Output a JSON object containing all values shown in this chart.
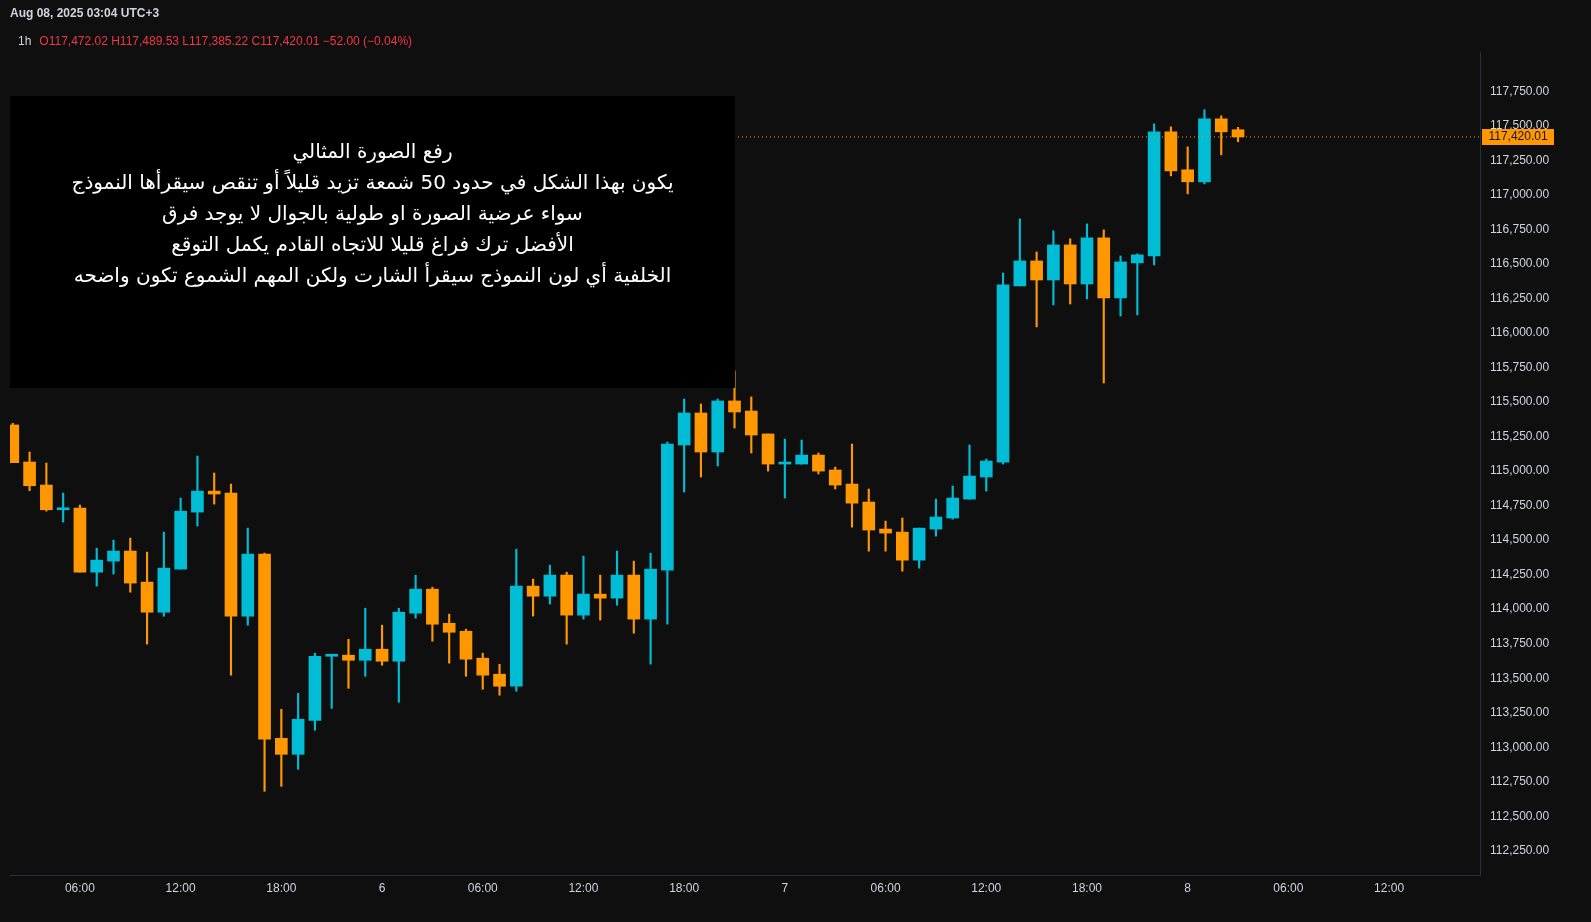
{
  "chart_data": {
    "type": "candlestick",
    "title": "1h",
    "subtitle": "O117,472.02 H117,489.53 L117,385.22 C117,420.01 −52.00 (−0.04%)",
    "annotations": [
      "Aug 08, 2025 03:04 UTC+3",
      "رفع الصورة المثالي\nيكون بهذا الشكل في حدود 50 شمعة تزيد قليلاً أو تنقص سيقرأها النموذج\nسواء عرضية الصورة او طولية بالجوال لا يوجد فرق\nالأفضل ترك فراغ قليلا للاتجاه القادم يكمل التوقع\nالخلفية أي لون النموذج سيقرأ الشارت ولكن المهم الشموع تكون واضحه"
    ],
    "x": [
      "2025-08-05T02:00",
      "2025-08-05T03:00",
      "2025-08-05T04:00",
      "2025-08-05T05:00",
      "2025-08-05T06:00",
      "2025-08-05T07:00",
      "2025-08-05T08:00",
      "2025-08-05T09:00",
      "2025-08-05T10:00",
      "2025-08-05T11:00",
      "2025-08-05T12:00",
      "2025-08-05T13:00",
      "2025-08-05T14:00",
      "2025-08-05T15:00",
      "2025-08-05T16:00",
      "2025-08-05T17:00",
      "2025-08-05T18:00",
      "2025-08-05T19:00",
      "2025-08-05T20:00",
      "2025-08-05T21:00",
      "2025-08-05T22:00",
      "2025-08-05T23:00",
      "2025-08-06T00:00",
      "2025-08-06T01:00",
      "2025-08-06T02:00",
      "2025-08-06T03:00",
      "2025-08-06T04:00",
      "2025-08-06T05:00",
      "2025-08-06T06:00",
      "2025-08-06T07:00",
      "2025-08-06T08:00",
      "2025-08-06T09:00",
      "2025-08-06T10:00",
      "2025-08-06T11:00",
      "2025-08-06T12:00",
      "2025-08-06T13:00",
      "2025-08-06T14:00",
      "2025-08-06T15:00",
      "2025-08-06T16:00",
      "2025-08-06T17:00",
      "2025-08-06T18:00",
      "2025-08-06T19:00",
      "2025-08-06T20:00",
      "2025-08-06T21:00",
      "2025-08-06T22:00",
      "2025-08-06T23:00",
      "2025-08-07T00:00",
      "2025-08-07T01:00",
      "2025-08-07T02:00",
      "2025-08-07T03:00",
      "2025-08-07T04:00",
      "2025-08-07T05:00",
      "2025-08-07T06:00",
      "2025-08-07T07:00",
      "2025-08-07T08:00",
      "2025-08-07T09:00",
      "2025-08-07T10:00",
      "2025-08-07T11:00",
      "2025-08-07T12:00",
      "2025-08-07T13:00",
      "2025-08-07T14:00",
      "2025-08-07T15:00",
      "2025-08-07T16:00",
      "2025-08-07T17:00",
      "2025-08-07T18:00",
      "2025-08-07T19:00",
      "2025-08-07T20:00",
      "2025-08-07T21:00",
      "2025-08-07T22:00",
      "2025-08-07T23:00",
      "2025-08-08T00:00",
      "2025-08-08T01:00",
      "2025-08-08T02:00",
      "2025-08-08T03:00"
    ],
    "ohlc": [
      [
        115334,
        115346,
        115061,
        115061
      ],
      [
        115066,
        115138,
        114858,
        114894
      ],
      [
        114899,
        115058,
        114710,
        114720
      ],
      [
        114720,
        114841,
        114631,
        114732
      ],
      [
        114732,
        114754,
        114268,
        114268
      ],
      [
        114268,
        114442,
        114167,
        114355
      ],
      [
        114348,
        114500,
        114254,
        114421
      ],
      [
        114421,
        114515,
        114123,
        114189
      ],
      [
        114196,
        114413,
        113747,
        113978
      ],
      [
        113978,
        114558,
        113949,
        114297
      ],
      [
        114290,
        114805,
        114290,
        114710
      ],
      [
        114703,
        115109,
        114602,
        114855
      ],
      [
        114855,
        114986,
        114761,
        114834
      ],
      [
        114841,
        114906,
        113522,
        113949
      ],
      [
        113949,
        114587,
        113884,
        114399
      ],
      [
        114399,
        114406,
        112681,
        113058
      ],
      [
        113065,
        113275,
        112717,
        112949
      ],
      [
        112949,
        113391,
        112840,
        113203
      ],
      [
        113195,
        113681,
        113123,
        113659
      ],
      [
        113659,
        113674,
        113282,
        113669
      ],
      [
        113667,
        113782,
        113427,
        113630
      ],
      [
        113630,
        114007,
        113514,
        113710
      ],
      [
        113710,
        113884,
        113594,
        113623
      ],
      [
        113623,
        114007,
        113326,
        113978
      ],
      [
        113971,
        114246,
        113935,
        114145
      ],
      [
        114145,
        114159,
        113768,
        113891
      ],
      [
        113898,
        113964,
        113609,
        113833
      ],
      [
        113840,
        113855,
        113514,
        113638
      ],
      [
        113645,
        113681,
        113420,
        113522
      ],
      [
        113529,
        113601,
        113377,
        113442
      ],
      [
        113442,
        114435,
        113406,
        114167
      ],
      [
        114167,
        114218,
        113950,
        114094
      ],
      [
        114094,
        114319,
        114037,
        114247
      ],
      [
        114247,
        114268,
        113747,
        113957
      ],
      [
        113957,
        114384,
        113928,
        114109
      ],
      [
        114109,
        114247,
        113921,
        114080
      ],
      [
        114080,
        114421,
        114029,
        114247
      ],
      [
        114247,
        114348,
        113826,
        113928
      ],
      [
        113928,
        114406,
        113602,
        114290
      ],
      [
        114283,
        115211,
        113892,
        115196
      ],
      [
        115189,
        115522,
        114848,
        115421
      ],
      [
        115421,
        115486,
        114957,
        115138
      ],
      [
        115138,
        115522,
        115037,
        115508
      ],
      [
        115508,
        115725,
        115312,
        115428
      ],
      [
        115435,
        115537,
        115131,
        115261
      ],
      [
        115269,
        115269,
        115000,
        115051
      ],
      [
        115051,
        115232,
        114805,
        115058
      ],
      [
        115051,
        115225,
        115051,
        115116
      ],
      [
        115116,
        115131,
        114979,
        115000
      ],
      [
        115008,
        115029,
        114870,
        114899
      ],
      [
        114906,
        115196,
        114594,
        114768
      ],
      [
        114776,
        114870,
        114420,
        114573
      ],
      [
        114580,
        114638,
        114420,
        114551
      ],
      [
        114558,
        114660,
        114275,
        114355
      ],
      [
        114355,
        114587,
        114297,
        114587
      ],
      [
        114580,
        114797,
        114529,
        114667
      ],
      [
        114660,
        114892,
        114652,
        114805
      ],
      [
        114797,
        115189,
        114797,
        114964
      ],
      [
        114957,
        115087,
        114855,
        115073
      ],
      [
        115065,
        116435,
        115051,
        116348
      ],
      [
        116341,
        116827,
        116341,
        116522
      ],
      [
        116522,
        116587,
        116044,
        116384
      ],
      [
        116384,
        116740,
        116203,
        116638
      ],
      [
        116638,
        116682,
        116210,
        116355
      ],
      [
        116355,
        116790,
        116247,
        116689
      ],
      [
        116689,
        116747,
        115638,
        116254
      ],
      [
        116254,
        116558,
        116123,
        116515
      ],
      [
        116508,
        116573,
        116131,
        116566
      ],
      [
        116558,
        117515,
        116493,
        117457
      ],
      [
        117457,
        117493,
        117138,
        117174
      ],
      [
        117182,
        117348,
        117008,
        117095
      ],
      [
        117095,
        117617,
        117080,
        117551
      ],
      [
        117551,
        117573,
        117290,
        117457
      ],
      [
        117472.02,
        117489.53,
        117385.22,
        117420.01
      ]
    ],
    "colors": [
      "#ff9800",
      "#ff9800",
      "#ff9800",
      "#00bcd4",
      "#ff9800",
      "#00bcd4",
      "#00bcd4",
      "#ff9800",
      "#ff9800",
      "#00bcd4",
      "#00bcd4",
      "#00bcd4",
      "#ff9800",
      "#ff9800",
      "#00bcd4",
      "#ff9800",
      "#ff9800",
      "#00bcd4",
      "#00bcd4",
      "#00bcd4",
      "#ff9800",
      "#00bcd4",
      "#ff9800",
      "#00bcd4",
      "#00bcd4",
      "#ff9800",
      "#ff9800",
      "#ff9800",
      "#ff9800",
      "#ff9800",
      "#00bcd4",
      "#ff9800",
      "#00bcd4",
      "#ff9800",
      "#00bcd4",
      "#ff9800",
      "#00bcd4",
      "#ff9800",
      "#00bcd4",
      "#00bcd4",
      "#00bcd4",
      "#ff9800",
      "#00bcd4",
      "#ff9800",
      "#ff9800",
      "#ff9800",
      "#00bcd4",
      "#00bcd4",
      "#ff9800",
      "#ff9800",
      "#ff9800",
      "#ff9800",
      "#ff9800",
      "#ff9800",
      "#00bcd4",
      "#00bcd4",
      "#00bcd4",
      "#00bcd4",
      "#00bcd4",
      "#00bcd4",
      "#00bcd4",
      "#ff9800",
      "#00bcd4",
      "#ff9800",
      "#00bcd4",
      "#ff9800",
      "#00bcd4",
      "#00bcd4",
      "#00bcd4",
      "#ff9800",
      "#ff9800",
      "#00bcd4",
      "#ff9800",
      "#ff9800"
    ],
    "xlim": [
      "2025-08-05T01:50",
      "2025-08-08T17:25"
    ],
    "xticks": [
      {
        "value": "2025-08-05T06:00",
        "label": "06:00"
      },
      {
        "value": "2025-08-05T12:00",
        "label": "12:00"
      },
      {
        "value": "2025-08-05T18:00",
        "label": "18:00"
      },
      {
        "value": "2025-08-06T00:00",
        "label": "6"
      },
      {
        "value": "2025-08-06T06:00",
        "label": "06:00"
      },
      {
        "value": "2025-08-06T12:00",
        "label": "12:00"
      },
      {
        "value": "2025-08-06T18:00",
        "label": "18:00"
      },
      {
        "value": "2025-08-07T00:00",
        "label": "7"
      },
      {
        "value": "2025-08-07T06:00",
        "label": "06:00"
      },
      {
        "value": "2025-08-07T12:00",
        "label": "12:00"
      },
      {
        "value": "2025-08-07T18:00",
        "label": "18:00"
      },
      {
        "value": "2025-08-08T00:00",
        "label": "8"
      },
      {
        "value": "2025-08-08T06:00",
        "label": "06:00"
      },
      {
        "value": "2025-08-08T12:00",
        "label": "12:00"
      }
    ],
    "ylim": [
      112075,
      118035
    ],
    "yticks": [
      {
        "value": 112250,
        "label": "112,250.00"
      },
      {
        "value": 112500,
        "label": "112,500.00"
      },
      {
        "value": 112750,
        "label": "112,750.00"
      },
      {
        "value": 113000,
        "label": "113,000.00"
      },
      {
        "value": 113250,
        "label": "113,250.00"
      },
      {
        "value": 113500,
        "label": "113,500.00"
      },
      {
        "value": 113750,
        "label": "113,750.00"
      },
      {
        "value": 114000,
        "label": "114,000.00"
      },
      {
        "value": 114250,
        "label": "114,250.00"
      },
      {
        "value": 114500,
        "label": "114,500.00"
      },
      {
        "value": 114750,
        "label": "114,750.00"
      },
      {
        "value": 115000,
        "label": "115,000.00"
      },
      {
        "value": 115250,
        "label": "115,250.00"
      },
      {
        "value": 115500,
        "label": "115,500.00"
      },
      {
        "value": 115750,
        "label": "115,750.00"
      },
      {
        "value": 116000,
        "label": "116,000.00"
      },
      {
        "value": 116250,
        "label": "116,250.00"
      },
      {
        "value": 116500,
        "label": "116,500.00"
      },
      {
        "value": 116750,
        "label": "116,750.00"
      },
      {
        "value": 117000,
        "label": "117,000.00"
      },
      {
        "value": 117250,
        "label": "117,250.00"
      },
      {
        "value": 117500,
        "label": "117,500.00"
      },
      {
        "value": 117750,
        "label": "117,750.00"
      }
    ],
    "ref_lines": [
      {
        "axis": "y",
        "value": 117420.01,
        "label": "117,420.01",
        "color": "#ff9800",
        "line_style": "dotted"
      }
    ],
    "grid": false,
    "legend": false
  }
}
